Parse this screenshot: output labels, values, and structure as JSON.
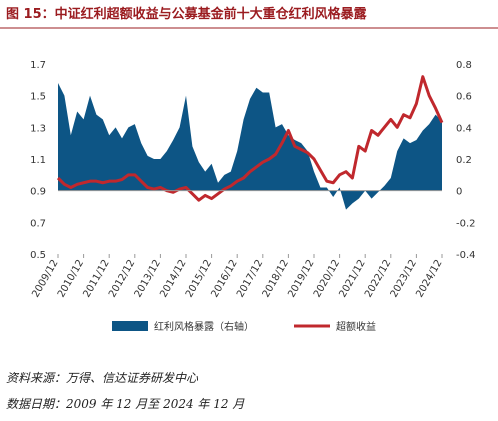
{
  "chart_data": {
    "type": "combo",
    "title": "图 15：中证红利超额收益与公募基金前十大重仓红利风格暴露",
    "categories": [
      "2009/12",
      null,
      null,
      null,
      "2010/12",
      null,
      null,
      null,
      "2011/12",
      null,
      null,
      null,
      "2012/12",
      null,
      null,
      null,
      "2013/12",
      null,
      null,
      null,
      "2014/12",
      null,
      null,
      null,
      "2015/12",
      null,
      null,
      null,
      "2016/12",
      null,
      null,
      null,
      "2017/12",
      null,
      null,
      null,
      "2018/12",
      null,
      null,
      null,
      "2019/12",
      null,
      null,
      null,
      "2020/12",
      null,
      null,
      null,
      "2021/12",
      null,
      null,
      null,
      "2022/12",
      null,
      null,
      null,
      "2023/12",
      null,
      null,
      null,
      "2024/12"
    ],
    "series": [
      {
        "name": "红利风格暴露（右轴）",
        "type": "area",
        "axis": "y2",
        "color": "#0d5585",
        "values": [
          0.68,
          0.6,
          0.35,
          0.5,
          0.45,
          0.6,
          0.48,
          0.45,
          0.35,
          0.4,
          0.33,
          0.4,
          0.42,
          0.3,
          0.22,
          0.2,
          0.2,
          0.25,
          0.32,
          0.4,
          0.6,
          0.28,
          0.18,
          0.12,
          0.17,
          0.05,
          0.1,
          0.12,
          0.25,
          0.45,
          0.58,
          0.65,
          0.62,
          0.62,
          0.4,
          0.42,
          0.35,
          0.32,
          0.3,
          0.25,
          0.12,
          0.02,
          0.02,
          -0.04,
          0.02,
          -0.12,
          -0.08,
          -0.05,
          0.0,
          -0.05,
          -0.01,
          0.03,
          0.08,
          0.25,
          0.33,
          0.3,
          0.32,
          0.38,
          0.42,
          0.48,
          0.44
        ]
      },
      {
        "name": "超额收益",
        "type": "line",
        "axis": "y",
        "color": "#c0282d",
        "values": [
          0.98,
          0.94,
          0.92,
          0.94,
          0.95,
          0.96,
          0.96,
          0.95,
          0.96,
          0.96,
          0.97,
          1.0,
          1.0,
          0.96,
          0.92,
          0.91,
          0.92,
          0.9,
          0.89,
          0.91,
          0.92,
          0.88,
          0.84,
          0.87,
          0.85,
          0.88,
          0.91,
          0.93,
          0.96,
          0.98,
          1.02,
          1.05,
          1.08,
          1.1,
          1.13,
          1.2,
          1.28,
          1.18,
          1.16,
          1.14,
          1.1,
          1.03,
          0.96,
          0.95,
          1.0,
          1.02,
          0.98,
          1.18,
          1.15,
          1.28,
          1.25,
          1.3,
          1.35,
          1.3,
          1.38,
          1.36,
          1.45,
          1.62,
          1.5,
          1.42,
          1.33
        ]
      }
    ],
    "ylim": [
      0.5,
      1.7
    ],
    "yticks": [
      0.5,
      0.7,
      0.9,
      1.1,
      1.3,
      1.5,
      1.7
    ],
    "y2lim": [
      -0.4,
      0.8
    ],
    "y2ticks": [
      -0.4,
      -0.2,
      0,
      0.2,
      0.4,
      0.6,
      0.8
    ],
    "grid": false,
    "legend": "bottom"
  },
  "notes": {
    "source": "资料来源：万得、信达证券研发中心",
    "date_range": "数据日期：2009 年 12 月至 2024 年 12 月"
  }
}
